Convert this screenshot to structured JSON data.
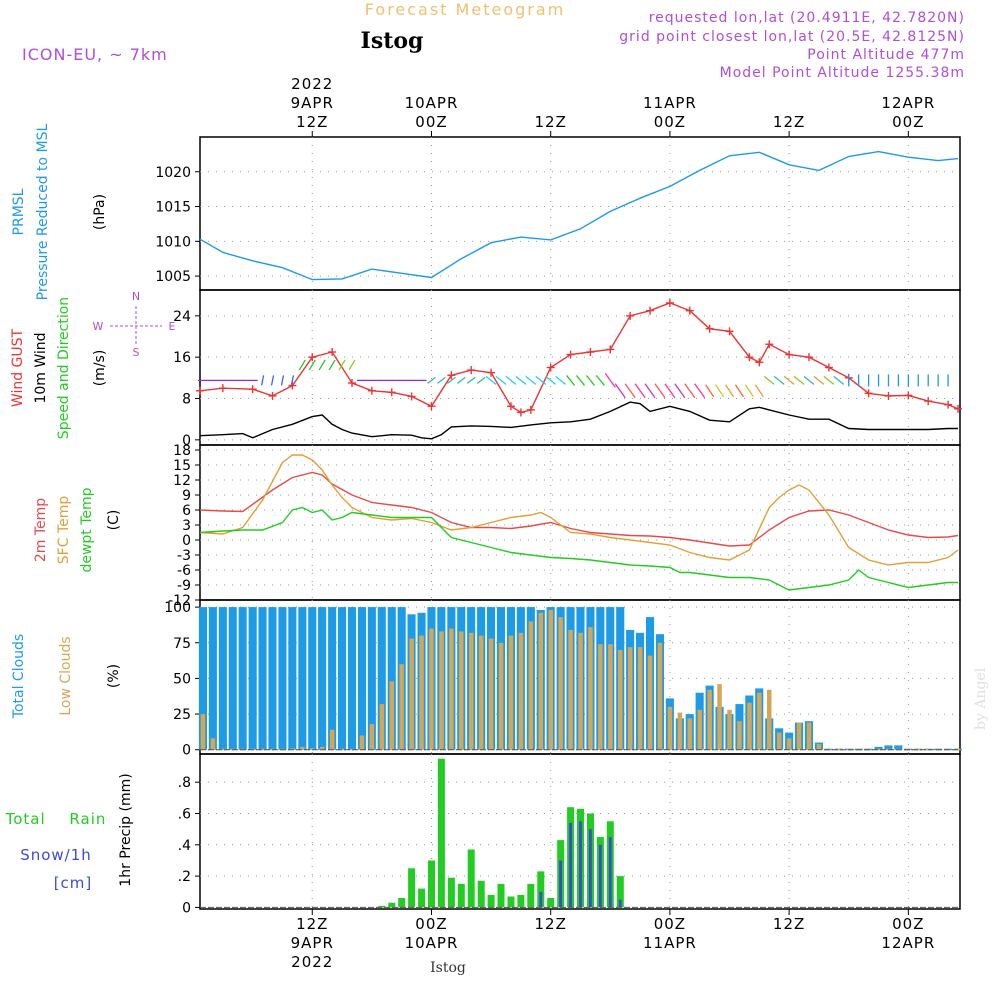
{
  "header": {
    "title": "Forecast Meteogram",
    "location": "Istog",
    "model": "ICON-EU, ~ 7km",
    "requested": "requested lon,lat (20.4911E, 42.7820N)",
    "grid_point": "grid point closest lon,lat (20.5E, 42.8125N)",
    "point_altitude": "Point Altitude 477m",
    "model_altitude": "Model Point Altitude 1255.38m",
    "credit": "by Angel",
    "footer_location": "Istog"
  },
  "colors": {
    "pressure": "#1e9be6",
    "gust": "#ee3333",
    "wind": "#000000",
    "temp2m": "#e84a4a",
    "sfc": "#e0a038",
    "dewpt": "#22cc22",
    "total_cloud": "#1e9be6",
    "low_cloud": "#d7a654",
    "rain": "#22cc22",
    "snow": "#3b4bd8",
    "label_purple": "#b04ed8",
    "title_gold": "#f0c070"
  },
  "time_axis": {
    "top_date_labels": [
      {
        "t": 12,
        "lines": [
          "2022",
          "9APR",
          "12Z"
        ]
      },
      {
        "t": 24,
        "lines": [
          "10APR",
          "00Z"
        ]
      },
      {
        "t": 36,
        "lines": [
          "12Z"
        ]
      },
      {
        "t": 48,
        "lines": [
          "11APR",
          "00Z"
        ]
      },
      {
        "t": 60,
        "lines": [
          "12Z"
        ]
      },
      {
        "t": 72,
        "lines": [
          "12APR",
          "00Z"
        ]
      }
    ],
    "bottom_date_labels": [
      {
        "t": 12,
        "lines": [
          "12Z",
          "9APR",
          "2022"
        ]
      },
      {
        "t": 24,
        "lines": [
          "00Z",
          "10APR"
        ]
      },
      {
        "t": 36,
        "lines": [
          "12Z"
        ]
      },
      {
        "t": 48,
        "lines": [
          "00Z",
          "11APR"
        ]
      },
      {
        "t": 60,
        "lines": [
          "12Z"
        ]
      },
      {
        "t": 72,
        "lines": [
          "00Z",
          "12APR"
        ]
      }
    ],
    "range_hours": [
      0.7,
      77.2
    ],
    "grid_hours": [
      12,
      24,
      36,
      48,
      60,
      72
    ]
  },
  "chart_data": [
    {
      "id": "pressure",
      "type": "line",
      "label_lines": [
        "PRMSL",
        "Pressure Reduced to MSL"
      ],
      "unit": "(hPa)",
      "ylim": [
        1003,
        1025
      ],
      "yticks": [
        1005,
        1010,
        1015,
        1020
      ],
      "series": [
        {
          "name": "PRMSL",
          "x": [
            0.7,
            3,
            6,
            9,
            12,
            15,
            18,
            21,
            24,
            27,
            30,
            33,
            36,
            39,
            42,
            45,
            48,
            51,
            54,
            57,
            60,
            63,
            66,
            69,
            72,
            75,
            77
          ],
          "values": [
            1010.3,
            1008.4,
            1007.2,
            1006.2,
            1004.5,
            1004.6,
            1006.0,
            1005.4,
            1004.8,
            1007.5,
            1009.8,
            1010.6,
            1010.2,
            1011.8,
            1014.3,
            1016.2,
            1017.9,
            1020.2,
            1022.3,
            1022.8,
            1021.0,
            1020.2,
            1022.2,
            1022.9,
            1022.1,
            1021.6,
            1021.9
          ]
        }
      ]
    },
    {
      "id": "wind",
      "type": "line",
      "label_lines": [
        "Wind GUST",
        "10m Wind",
        "Speed and Direction"
      ],
      "unit": "(m/s)",
      "ylim": [
        -1,
        29
      ],
      "yticks": [
        0,
        8,
        16,
        24
      ],
      "compass": {
        "n": "N",
        "s": "S",
        "w": "W",
        "e": "E"
      },
      "series": [
        {
          "name": "Wind GUST",
          "x": [
            0.7,
            3,
            6,
            8,
            10,
            12,
            14,
            16,
            18,
            20,
            22,
            24,
            26,
            28,
            30,
            32,
            33,
            34,
            36,
            38,
            40,
            42,
            44,
            46,
            48,
            50,
            52,
            54,
            56,
            57,
            58,
            60,
            62,
            64,
            66,
            68,
            70,
            72,
            74,
            76,
            77
          ],
          "values": [
            9.5,
            10,
            9.8,
            8.5,
            10.5,
            16,
            17,
            11,
            9.5,
            9.2,
            8.4,
            6.5,
            12.5,
            13.5,
            13,
            6.5,
            5.3,
            5.8,
            14,
            16.5,
            17,
            17.5,
            24,
            25,
            26.5,
            25,
            21.5,
            21,
            16,
            15,
            18.5,
            16.5,
            16,
            14,
            12,
            9,
            8.5,
            8.6,
            7.5,
            6.8,
            6
          ]
        },
        {
          "name": "10m Wind",
          "x": [
            0.7,
            3,
            5,
            6,
            8,
            10,
            12,
            13,
            14,
            15,
            16,
            18,
            20,
            22,
            23,
            24,
            25,
            26,
            28,
            30,
            32,
            34,
            36,
            38,
            40,
            42,
            44,
            45,
            46,
            48,
            50,
            52,
            54,
            56,
            57,
            58,
            60,
            62,
            64,
            66,
            68,
            70,
            72,
            74,
            76,
            77
          ],
          "values": [
            0.8,
            1.0,
            1.2,
            0.4,
            2.0,
            3.0,
            4.5,
            4.8,
            3.0,
            2.0,
            1.3,
            0.6,
            1.0,
            0.9,
            0.4,
            0.2,
            1.0,
            2.5,
            2.7,
            2.6,
            2.4,
            2.9,
            3.3,
            3.5,
            4.0,
            5.5,
            7.3,
            7.0,
            5.5,
            6.5,
            5.5,
            3.8,
            3.5,
            6.0,
            6.3,
            5.8,
            4.8,
            4.0,
            4.0,
            2.2,
            2.0,
            2.0,
            2.0,
            2.0,
            2.2,
            2.2
          ]
        }
      ]
    },
    {
      "id": "temperature",
      "type": "line",
      "label_lines": [
        "2m Temp",
        "SFC Temp",
        "dewpt Temp"
      ],
      "unit": "(C)",
      "ylim": [
        -12,
        19
      ],
      "yticks": [
        -12,
        -9,
        -6,
        -3,
        0,
        3,
        6,
        9,
        12,
        15,
        18
      ],
      "series": [
        {
          "name": "2m Temp",
          "x": [
            0.7,
            3,
            5,
            8,
            10,
            12,
            13,
            14,
            16,
            18,
            20,
            22,
            24,
            26,
            28,
            30,
            32,
            34,
            36,
            38,
            40,
            42,
            44,
            46,
            48,
            50,
            52,
            54,
            56,
            58,
            60,
            62,
            64,
            66,
            68,
            70,
            72,
            74,
            76,
            77
          ],
          "values": [
            6.0,
            5.8,
            5.7,
            10,
            12.5,
            13.5,
            13.0,
            11.2,
            9.0,
            7.5,
            7.0,
            6.5,
            5.5,
            3.5,
            2.5,
            2.5,
            2.3,
            2.8,
            3.5,
            2.3,
            1.5,
            1.2,
            0.9,
            0.8,
            0.5,
            0.0,
            -0.6,
            -1.2,
            -1.0,
            2.0,
            4.5,
            5.8,
            6.0,
            5.0,
            3.5,
            2.0,
            1.0,
            0.5,
            0.6,
            0.9
          ]
        },
        {
          "name": "SFC Temp",
          "x": [
            0.7,
            3,
            5,
            7,
            9,
            10,
            11,
            12,
            13,
            14,
            15,
            16,
            18,
            20,
            22,
            24,
            26,
            28,
            30,
            32,
            34,
            35,
            36,
            38,
            40,
            42,
            44,
            46,
            48,
            50,
            52,
            54,
            56,
            58,
            59,
            60,
            61,
            62,
            64,
            66,
            68,
            70,
            72,
            74,
            76,
            77
          ],
          "values": [
            1.5,
            1.2,
            2.5,
            8,
            15.5,
            17,
            17,
            16,
            14,
            11,
            8.5,
            6.5,
            4.5,
            4.0,
            4.3,
            3.5,
            2.0,
            2.5,
            3.5,
            4.5,
            5.0,
            5.5,
            4.5,
            1.5,
            1.2,
            0.5,
            0.0,
            -0.5,
            -1.0,
            -2.5,
            -3.5,
            -4.0,
            -2.0,
            6.5,
            8.5,
            10,
            11,
            10,
            5.0,
            -1.5,
            -4.0,
            -5.0,
            -4.5,
            -4.5,
            -3.5,
            -2.0
          ]
        },
        {
          "name": "dewpt Temp",
          "x": [
            0.7,
            3,
            5,
            7,
            9,
            10,
            11,
            12,
            13,
            14,
            15,
            16,
            18,
            20,
            22,
            24,
            26,
            28,
            30,
            32,
            34,
            36,
            38,
            40,
            42,
            44,
            46,
            48,
            49,
            50,
            52,
            54,
            56,
            58,
            60,
            62,
            64,
            66,
            67,
            68,
            70,
            72,
            74,
            76,
            77
          ],
          "values": [
            1.5,
            1.8,
            2.0,
            2.0,
            3.5,
            6.0,
            6.5,
            5.5,
            6.0,
            4.0,
            4.5,
            5.5,
            5.0,
            4.5,
            4.5,
            4.5,
            0.5,
            -0.5,
            -1.5,
            -2.5,
            -3.0,
            -3.5,
            -3.7,
            -4.0,
            -4.5,
            -5.0,
            -5.2,
            -5.5,
            -6.5,
            -6.5,
            -7.0,
            -7.5,
            -7.5,
            -8.0,
            -10.0,
            -9.5,
            -9.0,
            -8.0,
            -6.0,
            -7.5,
            -8.5,
            -9.5,
            -9.0,
            -8.5,
            -8.5
          ]
        }
      ]
    },
    {
      "id": "clouds",
      "type": "bar",
      "label_lines": [
        "Total Clouds",
        "Low Clouds"
      ],
      "unit": "(%)",
      "ylim": [
        -3,
        105
      ],
      "yticks": [
        0,
        25,
        50,
        75,
        100
      ],
      "x": [
        1,
        2,
        3,
        4,
        5,
        6,
        7,
        8,
        9,
        10,
        11,
        12,
        13,
        14,
        15,
        16,
        17,
        18,
        19,
        20,
        21,
        22,
        23,
        24,
        25,
        26,
        27,
        28,
        29,
        30,
        31,
        32,
        33,
        34,
        35,
        36,
        37,
        38,
        39,
        40,
        41,
        42,
        43,
        44,
        45,
        46,
        47,
        48,
        49,
        50,
        51,
        52,
        53,
        54,
        55,
        56,
        57,
        58,
        59,
        60,
        61,
        62,
        63,
        64,
        65,
        66,
        67,
        68,
        69,
        70,
        71,
        72,
        73,
        74,
        75,
        76,
        77
      ],
      "series": [
        {
          "name": "Total Clouds",
          "values": [
            100,
            100,
            100,
            100,
            100,
            100,
            100,
            100,
            100,
            100,
            100,
            100,
            100,
            100,
            100,
            100,
            100,
            100,
            100,
            100,
            100,
            95,
            96,
            100,
            100,
            100,
            100,
            100,
            100,
            100,
            100,
            100,
            100,
            100,
            98,
            100,
            100,
            100,
            100,
            100,
            100,
            100,
            100,
            84,
            82,
            93,
            81,
            36,
            22,
            25,
            40,
            45,
            30,
            25,
            32,
            38,
            43,
            22,
            15,
            12,
            19,
            20,
            5,
            0,
            0,
            0,
            0,
            0,
            2,
            3,
            3,
            0,
            0,
            0,
            0,
            0,
            0
          ]
        },
        {
          "name": "Low Clouds",
          "values": [
            25,
            8,
            0,
            0,
            0,
            0,
            0,
            0,
            0,
            1,
            2,
            1,
            2,
            14,
            0,
            0,
            10,
            18,
            32,
            48,
            60,
            78,
            80,
            85,
            83,
            85,
            83,
            82,
            80,
            78,
            75,
            80,
            82,
            90,
            96,
            98,
            93,
            84,
            82,
            86,
            74,
            74,
            70,
            72,
            72,
            66,
            75,
            30,
            26,
            22,
            28,
            42,
            46,
            28,
            20,
            33,
            40,
            42,
            12,
            8,
            19,
            19,
            4,
            0,
            0,
            0,
            0,
            0,
            0,
            0,
            0,
            0,
            0,
            0,
            0,
            0,
            0
          ]
        }
      ]
    },
    {
      "id": "precip",
      "type": "bar",
      "label_lines": [
        "Total Rain",
        "Snow/1h",
        "[cm]"
      ],
      "axis_label": "1hr Precip (mm)",
      "ylim": [
        -0.01,
        0.98
      ],
      "yticks": [
        0,
        0.2,
        0.4,
        0.6,
        0.8
      ],
      "x": [
        19,
        20,
        21,
        22,
        23,
        24,
        25,
        26,
        27,
        28,
        29,
        30,
        31,
        32,
        33,
        34,
        35,
        36,
        37,
        38,
        39,
        40,
        41,
        42,
        43,
        44,
        45
      ],
      "series": [
        {
          "name": "Total Rain",
          "values": [
            0.01,
            0.03,
            0.06,
            0.25,
            0.12,
            0.3,
            0.95,
            0.19,
            0.15,
            0.37,
            0.17,
            0.08,
            0.15,
            0.07,
            0.08,
            0.15,
            0.23,
            0.06,
            0.43,
            0.64,
            0.63,
            0.6,
            0.45,
            0.55,
            0.2,
            0,
            0
          ]
        },
        {
          "name": "Snow",
          "values": [
            0,
            0,
            0,
            0,
            0,
            0,
            0,
            0,
            0,
            0,
            0,
            0,
            0,
            0,
            0,
            0,
            0.1,
            0,
            0.3,
            0.54,
            0.55,
            0.5,
            0.4,
            0.45,
            0.05,
            0,
            0
          ]
        }
      ]
    }
  ]
}
